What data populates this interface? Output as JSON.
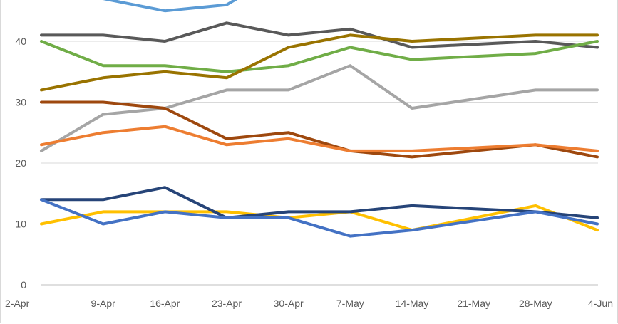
{
  "chart_data": {
    "type": "line",
    "title": "",
    "xlabel": "",
    "ylabel": "",
    "categories": [
      "2-Apr",
      "9-Apr",
      "16-Apr",
      "23-Apr",
      "30-Apr",
      "7-May",
      "14-May",
      "21-May",
      "28-May",
      "4-Jun"
    ],
    "ylim": [
      0,
      47
    ],
    "yticks": [
      0,
      10,
      20,
      30,
      40
    ],
    "grid": true,
    "legend": "none",
    "series": [
      {
        "color": "#5b9bd5",
        "values": [
          48,
          47,
          45,
          46,
          52,
          null,
          null,
          null,
          null,
          null
        ]
      },
      {
        "color": "#595959",
        "values": [
          41,
          41,
          40,
          43,
          41,
          42,
          39,
          null,
          40,
          39
        ]
      },
      {
        "color": "#70ad47",
        "values": [
          40,
          36,
          36,
          35,
          36,
          39,
          37,
          null,
          38,
          40
        ]
      },
      {
        "color": "#997300",
        "values": [
          32,
          34,
          35,
          34,
          39,
          41,
          40,
          null,
          41,
          41
        ]
      },
      {
        "color": "#a5a5a5",
        "values": [
          22,
          28,
          29,
          32,
          32,
          36,
          29,
          null,
          32,
          32
        ]
      },
      {
        "color": "#9e480e",
        "values": [
          30,
          30,
          29,
          24,
          25,
          22,
          21,
          null,
          23,
          21
        ]
      },
      {
        "color": "#ed7d31",
        "values": [
          23,
          25,
          26,
          23,
          24,
          22,
          22,
          null,
          23,
          22
        ]
      },
      {
        "color": "#ffc000",
        "values": [
          10,
          12,
          12,
          12,
          11,
          12,
          9,
          null,
          13,
          9
        ]
      },
      {
        "color": "#264478",
        "values": [
          14,
          14,
          16,
          11,
          12,
          12,
          13,
          null,
          12,
          11
        ]
      },
      {
        "color": "#4472c4",
        "values": [
          14,
          10,
          12,
          11,
          11,
          8,
          9,
          null,
          12,
          10
        ]
      }
    ]
  }
}
